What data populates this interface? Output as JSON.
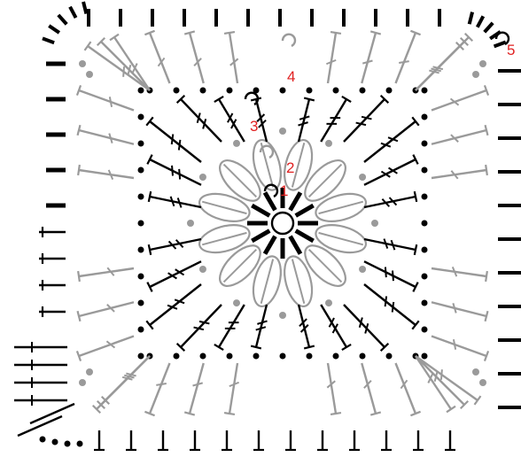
{
  "diagram": {
    "title": "",
    "colors": {
      "background": "#ffffff",
      "black": "#000000",
      "gray": "#9a9a9a",
      "label": "#e02020"
    },
    "round_labels": [
      "1",
      "2",
      "3",
      "4",
      "5"
    ],
    "symbols": [
      {
        "name": "magic-ring",
        "round": 0
      },
      {
        "name": "chain-stitch",
        "color": "black"
      },
      {
        "name": "chain-stitch",
        "color": "gray"
      },
      {
        "name": "double-crochet",
        "color": "black"
      },
      {
        "name": "treble-crochet",
        "color": "black"
      },
      {
        "name": "treble-crochet",
        "color": "gray"
      },
      {
        "name": "puff-stitch",
        "color": "gray"
      },
      {
        "name": "single-crochet",
        "color": "black"
      },
      {
        "name": "half-double-crochet",
        "color": "black"
      }
    ]
  }
}
